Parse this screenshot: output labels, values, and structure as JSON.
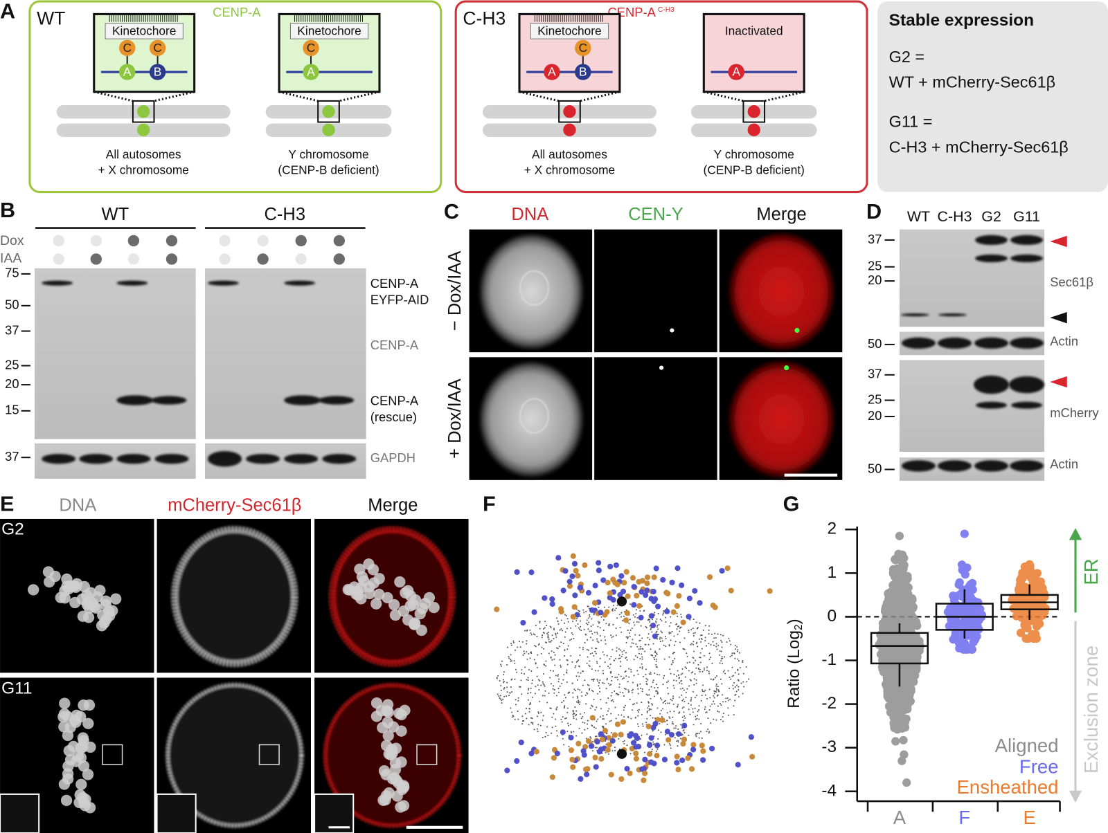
{
  "panel_a": {
    "label": "A",
    "wt": {
      "title": "WT",
      "protein": "CENP-A",
      "insets": [
        {
          "header": "Kinetochore",
          "circles": [
            "C",
            "C",
            "A",
            "B"
          ],
          "caption": [
            "All autosomes",
            "+ X chromosome"
          ]
        },
        {
          "header": "Kinetochore",
          "circles": [
            "C",
            "A"
          ],
          "caption": [
            "Y chromosome",
            "(CENP-B deficient)"
          ]
        }
      ]
    },
    "ch3": {
      "title": "C-H3",
      "protein": "CENP-A",
      "protein_sup": "C-H3",
      "insets": [
        {
          "header": "Kinetochore",
          "circles": [
            "C",
            "A",
            "B"
          ],
          "caption": [
            "All autosomes",
            "+ X chromosome"
          ]
        },
        {
          "header": "Inactivated",
          "circles": [
            "A"
          ],
          "caption": [
            "Y chromosome",
            "(CENP-B deficient)"
          ]
        }
      ]
    },
    "stable": {
      "title": "Stable expression",
      "lines": [
        "G2 =",
        "WT + mCherry-Sec61β",
        "G11 =",
        "C-H3 + mCherry-Sec61β"
      ]
    }
  },
  "panel_b": {
    "label": "B",
    "groups": [
      "WT",
      "C-H3"
    ],
    "treatments": [
      "Dox",
      "IAA"
    ],
    "markers": [
      75,
      50,
      37,
      25,
      20,
      15,
      37
    ],
    "band_labels": [
      "CENP-A",
      "EYFP-AID",
      "CENP-A",
      "CENP-A",
      "(rescue)",
      "GAPDH"
    ]
  },
  "panel_c": {
    "label": "C",
    "columns": [
      "DNA",
      "CEN-Y",
      "Merge"
    ],
    "rows": [
      "− Dox/IAA",
      "+ Dox/IAA"
    ]
  },
  "panel_d": {
    "label": "D",
    "lanes": [
      "WT",
      "C-H3",
      "G2",
      "G11"
    ],
    "markers": [
      37,
      25,
      20,
      50,
      37,
      25,
      20,
      50
    ],
    "band_labels": [
      "Sec61β",
      "Actin",
      "mCherry",
      "Actin"
    ]
  },
  "panel_e": {
    "label": "E",
    "columns": [
      "DNA",
      "mCherry-Sec61β",
      "Merge"
    ],
    "rows": [
      "G2",
      "G11"
    ]
  },
  "panel_f": {
    "label": "F"
  },
  "panel_g": {
    "label": "G",
    "y_label": "Ratio (Log",
    "y_label_sub": "2",
    "y_label_end": ")",
    "ylim": [
      -4,
      2
    ],
    "yticks": [
      2,
      1,
      0,
      -1,
      -2,
      -3,
      -4
    ],
    "categories": [
      "A",
      "F",
      "E"
    ],
    "series": [
      {
        "name": "Aligned",
        "color": "#8c8c8c",
        "min": -3.8,
        "max": 1.85,
        "low": -1.6,
        "q1": -1.07,
        "median": -0.67,
        "q3": -0.37,
        "high": -0.15
      },
      {
        "name": "Free",
        "color": "#6a6af0",
        "min": -0.75,
        "max": 1.9,
        "low": -0.5,
        "q1": -0.3,
        "median": 0,
        "q3": 0.3,
        "high": 0.63
      },
      {
        "name": "Ensheathed",
        "color": "#ec7b2d",
        "min": -0.5,
        "max": 1.2,
        "low": -0.07,
        "q1": 0.17,
        "median": 0.33,
        "q3": 0.5,
        "high": 0.74
      }
    ],
    "arrows": [
      "ER",
      "Exclusion zone"
    ]
  }
}
